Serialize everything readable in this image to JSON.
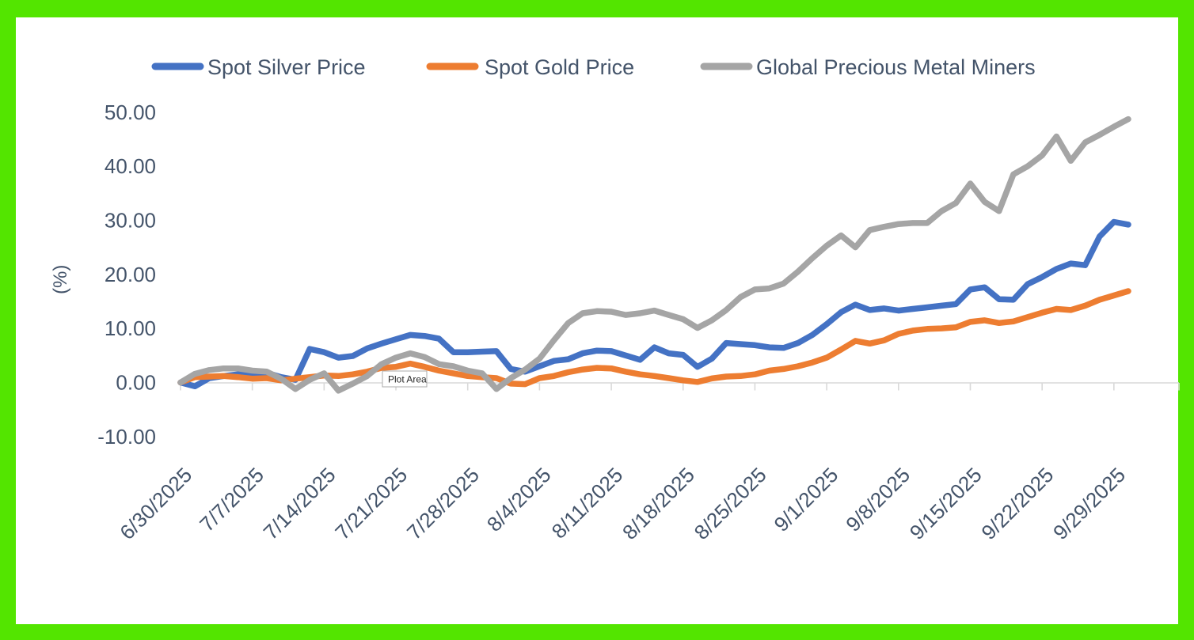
{
  "frame": {
    "border_color": "#53E500",
    "background": "#FFFFFF"
  },
  "tooltip": {
    "label": "Plot Area"
  },
  "chart_data": {
    "type": "line",
    "title": "",
    "xlabel": "",
    "ylabel": "(%)",
    "ylim": [
      -10,
      50
    ],
    "y_ticks": [
      50,
      40,
      30,
      20,
      10,
      0,
      -10
    ],
    "y_tick_format": "two decimals",
    "grid": "zero axis line only, light gray, with weekly down-ticks",
    "legend_position": "top",
    "axis_text_color": "#44546A",
    "x_tick_labels": [
      "6/30/2025",
      "7/7/2025",
      "7/14/2025",
      "7/21/2025",
      "7/28/2025",
      "8/4/2025",
      "8/11/2025",
      "8/18/2025",
      "8/25/2025",
      "9/1/2025",
      "9/8/2025",
      "9/15/2025",
      "9/22/2025",
      "9/29/2025"
    ],
    "x": [
      "6/30/2025",
      "7/1/2025",
      "7/2/2025",
      "7/3/2025",
      "7/4/2025",
      "7/7/2025",
      "7/8/2025",
      "7/9/2025",
      "7/10/2025",
      "7/11/2025",
      "7/14/2025",
      "7/15/2025",
      "7/16/2025",
      "7/17/2025",
      "7/18/2025",
      "7/21/2025",
      "7/22/2025",
      "7/23/2025",
      "7/24/2025",
      "7/25/2025",
      "7/28/2025",
      "7/29/2025",
      "7/30/2025",
      "7/31/2025",
      "8/1/2025",
      "8/4/2025",
      "8/5/2025",
      "8/6/2025",
      "8/7/2025",
      "8/8/2025",
      "8/11/2025",
      "8/12/2025",
      "8/13/2025",
      "8/14/2025",
      "8/15/2025",
      "8/18/2025",
      "8/19/2025",
      "8/20/2025",
      "8/21/2025",
      "8/22/2025",
      "8/25/2025",
      "8/26/2025",
      "8/27/2025",
      "8/28/2025",
      "8/29/2025",
      "9/1/2025",
      "9/2/2025",
      "9/3/2025",
      "9/4/2025",
      "9/5/2025",
      "9/8/2025",
      "9/9/2025",
      "9/10/2025",
      "9/11/2025",
      "9/12/2025",
      "9/15/2025",
      "9/16/2025",
      "9/17/2025",
      "9/18/2025",
      "9/19/2025",
      "9/22/2025",
      "9/23/2025",
      "9/24/2025",
      "9/25/2025",
      "9/26/2025",
      "9/29/2025",
      "9/30/2025"
    ],
    "series": [
      {
        "name": "Spot Silver Price",
        "color": "#4472C4",
        "values": [
          0.0,
          -0.7,
          0.8,
          1.2,
          1.5,
          1.8,
          1.8,
          1.0,
          0.5,
          6.2,
          5.6,
          4.6,
          4.9,
          6.3,
          7.2,
          8.0,
          8.8,
          8.6,
          8.1,
          5.6,
          5.6,
          5.7,
          5.8,
          2.5,
          2.0,
          3.0,
          4.0,
          4.3,
          5.4,
          5.9,
          5.8,
          5.0,
          4.2,
          6.5,
          5.4,
          5.1,
          2.9,
          4.4,
          7.3,
          7.1,
          6.9,
          6.5,
          6.4,
          7.3,
          8.8,
          10.8,
          13.0,
          14.4,
          13.4,
          13.7,
          13.3,
          13.6,
          13.9,
          14.2,
          14.5,
          17.2,
          17.6,
          15.4,
          15.3,
          18.2,
          19.5,
          21.0,
          22.0,
          21.7,
          27.0,
          29.7,
          29.2
        ]
      },
      {
        "name": "Spot Gold Price",
        "color": "#ED7D31",
        "values": [
          0.0,
          1.0,
          1.1,
          1.2,
          1.0,
          0.7,
          0.8,
          0.4,
          0.7,
          1.0,
          1.3,
          1.2,
          1.5,
          2.0,
          2.7,
          2.9,
          3.5,
          2.9,
          2.2,
          1.7,
          1.2,
          1.0,
          0.8,
          -0.2,
          -0.3,
          0.8,
          1.2,
          1.9,
          2.4,
          2.7,
          2.6,
          2.0,
          1.5,
          1.2,
          0.8,
          0.4,
          0.1,
          0.75,
          1.1,
          1.2,
          1.5,
          2.2,
          2.5,
          3.0,
          3.7,
          4.6,
          6.1,
          7.7,
          7.2,
          7.8,
          9.0,
          9.6,
          9.9,
          10.0,
          10.2,
          11.2,
          11.5,
          11.0,
          11.3,
          12.1,
          12.9,
          13.6,
          13.4,
          14.2,
          15.3,
          16.1,
          16.9
        ]
      },
      {
        "name": "Global Precious Metal Miners",
        "color": "#A5A5A5",
        "values": [
          0.0,
          1.6,
          2.3,
          2.6,
          2.6,
          2.2,
          2.0,
          0.7,
          -1.2,
          0.5,
          1.7,
          -1.5,
          -0.2,
          1.2,
          3.4,
          4.6,
          5.4,
          4.7,
          3.4,
          3.0,
          2.2,
          1.7,
          -1.2,
          0.8,
          2.4,
          4.4,
          7.8,
          11.0,
          12.8,
          13.2,
          13.1,
          12.5,
          12.8,
          13.3,
          12.5,
          11.7,
          10.1,
          11.5,
          13.4,
          15.8,
          17.2,
          17.4,
          18.3,
          20.5,
          23.0,
          25.3,
          27.2,
          25.0,
          28.2,
          28.8,
          29.3,
          29.5,
          29.5,
          31.7,
          33.2,
          36.8,
          33.4,
          31.7,
          38.5,
          40.0,
          42.0,
          45.5,
          41.0,
          44.4,
          45.8,
          47.3,
          48.7
        ]
      }
    ]
  }
}
